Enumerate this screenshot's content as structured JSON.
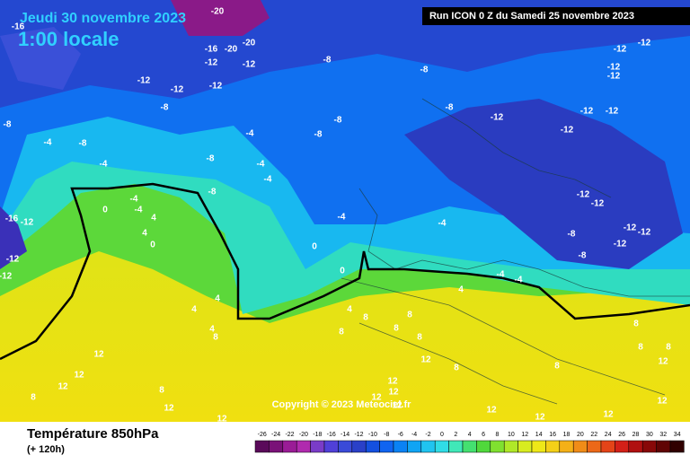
{
  "header": {
    "date": "Jeudi 30 novembre 2023",
    "time": "1:00 locale",
    "run": "Run ICON 0 Z du Samedi 25 novembre 2023"
  },
  "copyright": "Copyright © 2023 Meteociel.fr",
  "footer": {
    "title": "Température 850hPa",
    "subtitle": "(+ 120h)"
  },
  "colorbar": {
    "labels": [
      -26,
      -24,
      -22,
      -20,
      -18,
      -16,
      -14,
      -12,
      -10,
      -8,
      -6,
      -4,
      -2,
      0,
      2,
      4,
      6,
      8,
      10,
      12,
      14,
      16,
      18,
      20,
      22,
      24,
      26,
      28,
      30,
      32,
      34
    ],
    "colors": [
      "#5a0a5a",
      "#7a1278",
      "#9a1c96",
      "#b02aae",
      "#7a3cc8",
      "#5040d8",
      "#3a4ad8",
      "#2a40c8",
      "#1450e0",
      "#1064f0",
      "#0a82f4",
      "#10a4f4",
      "#20c4f0",
      "#30dce6",
      "#40e8b8",
      "#44e070",
      "#50d83c",
      "#80e030",
      "#b0e828",
      "#d8ec20",
      "#eee818",
      "#f4d018",
      "#f4b018",
      "#f08c18",
      "#ec6818",
      "#e44418",
      "#d42018",
      "#b01010",
      "#880808",
      "#600404",
      "#300000"
    ]
  },
  "map_labels": [
    "-20",
    "-16",
    "-16",
    "-20",
    "-20",
    "-12",
    "-12",
    "-8",
    "-8",
    "-12",
    "-12",
    "-12",
    "-12",
    "-12",
    "-12",
    "-12",
    "-8",
    "-8",
    "-8",
    "-12",
    "-12",
    "-12",
    "-12",
    "-8",
    "-4",
    "-8",
    "-4",
    "-4",
    "-8",
    "-8",
    "-4",
    "-4",
    "-8",
    "-4",
    "0",
    "-4",
    "4",
    "4",
    "0",
    "-4",
    "-4",
    "-16",
    "-12",
    "-12",
    "-12",
    "-12",
    "-12",
    "-8",
    "-12",
    "-8",
    "-12",
    "-12",
    "0",
    "0",
    "-4",
    "-4",
    "4",
    "4",
    "4",
    "4",
    "8",
    "4",
    "8",
    "8",
    "8",
    "8",
    "8",
    "12",
    "8",
    "8",
    "8",
    "8",
    "12",
    "12",
    "12",
    "12",
    "12",
    "8",
    "8",
    "12",
    "12",
    "12",
    "12",
    "12",
    "12",
    "12",
    "12",
    "12",
    "8"
  ]
}
